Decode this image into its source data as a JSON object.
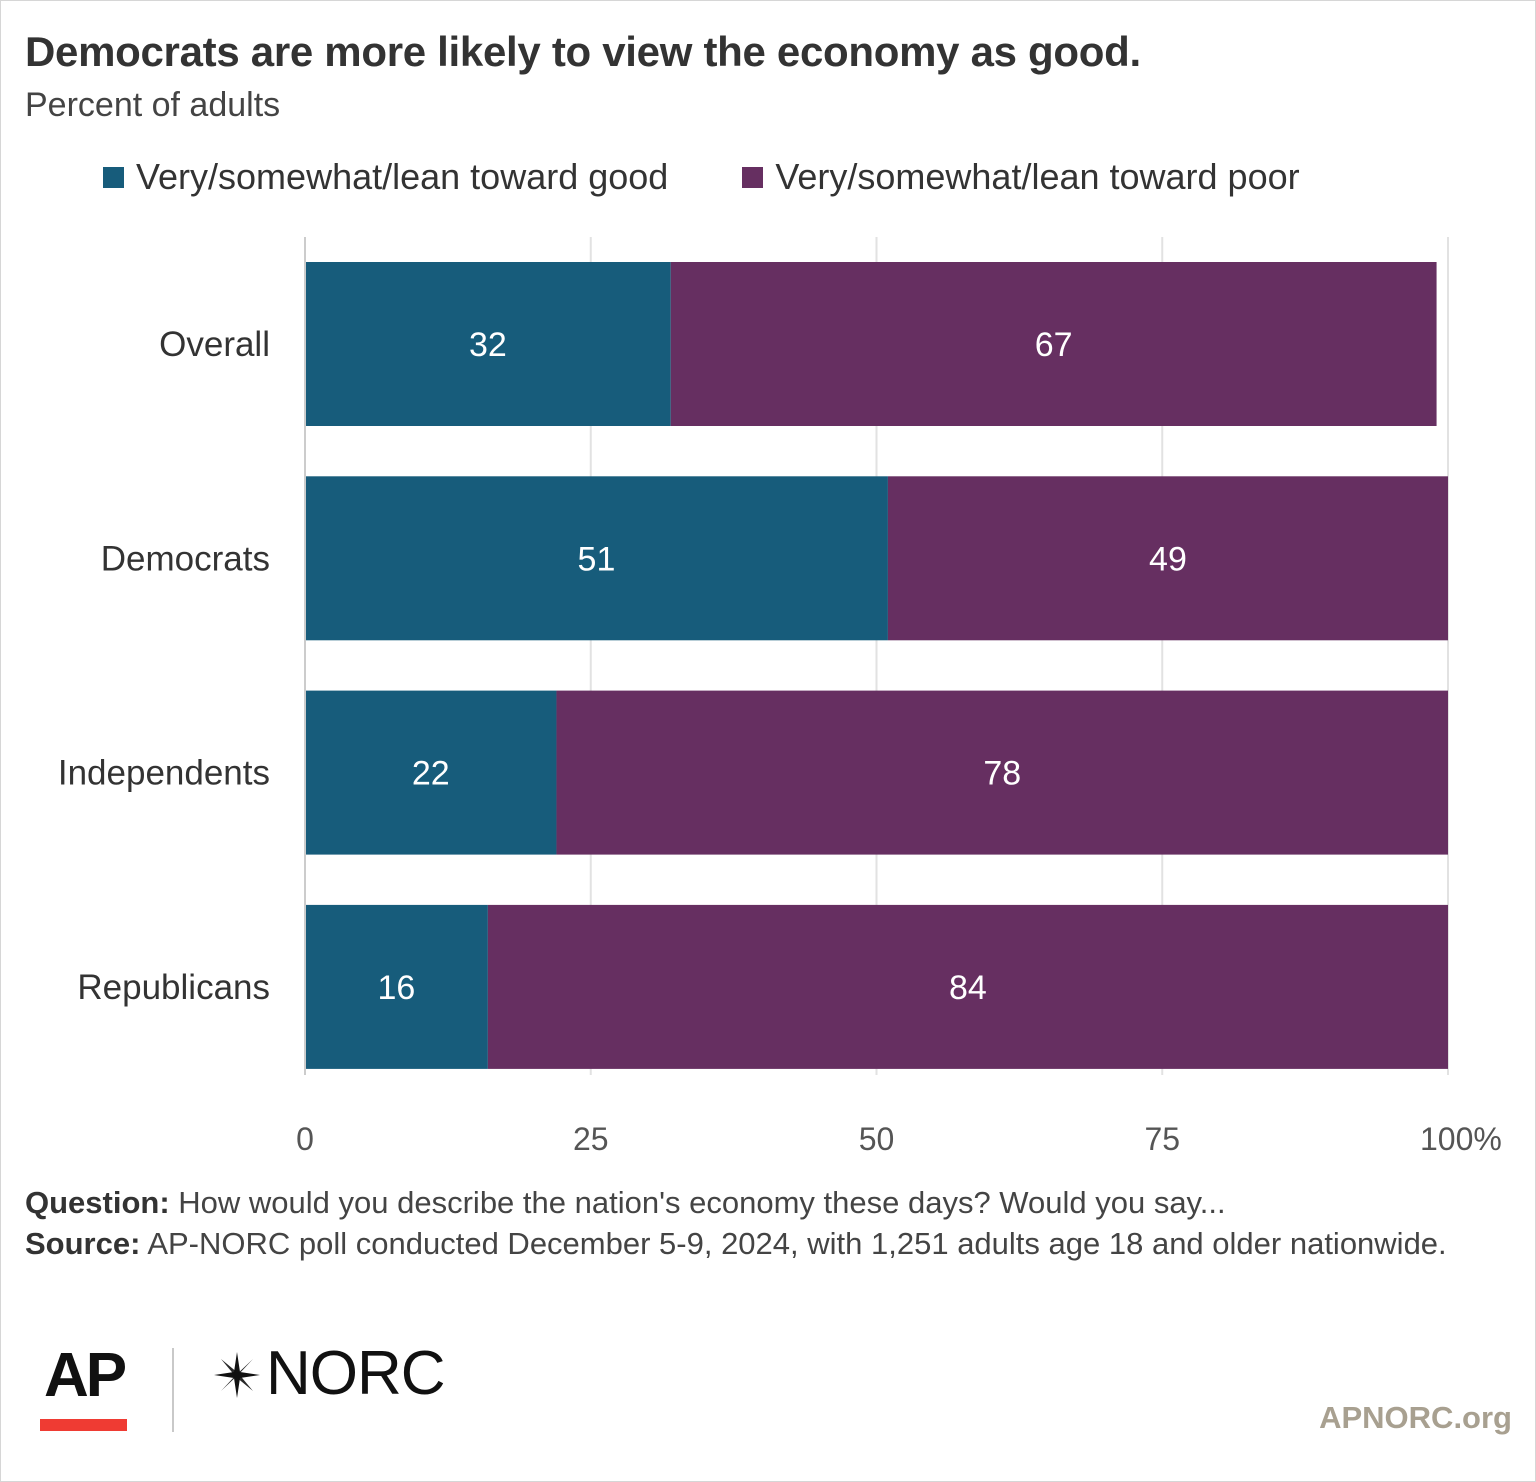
{
  "header": {
    "title": "Democrats are more likely to view the economy as good.",
    "subtitle": "Percent of adults"
  },
  "legend": [
    {
      "label": "Very/somewhat/lean toward good",
      "color": "#175c7b"
    },
    {
      "label": "Very/somewhat/lean toward poor",
      "color": "#662f61"
    }
  ],
  "chart_data": {
    "type": "bar",
    "orientation": "horizontal",
    "stacked": true,
    "categories": [
      "Overall",
      "Democrats",
      "Independents",
      "Republicans"
    ],
    "series": [
      {
        "name": "Very/somewhat/lean toward good",
        "values": [
          32,
          51,
          22,
          16
        ],
        "color": "#175c7b"
      },
      {
        "name": "Very/somewhat/lean toward poor",
        "values": [
          67,
          49,
          78,
          84
        ],
        "color": "#662f61"
      }
    ],
    "xlim": [
      0,
      100
    ],
    "x_ticks": [
      "0",
      "25",
      "50",
      "75",
      "100%"
    ],
    "grid": true,
    "legend_position": "top"
  },
  "notes": {
    "question_label": "Question:",
    "question_text": "How would you describe the nation's economy these days? Would you say...",
    "source_label": "Source:",
    "source_text": "AP-NORC poll conducted December 5-9, 2024, with 1,251 adults age 18 and older nationwide."
  },
  "branding": {
    "ap_logo": "AP",
    "norc_logo": "NORC",
    "star_icon": "norc-star-icon",
    "website": "APNORC.org"
  }
}
